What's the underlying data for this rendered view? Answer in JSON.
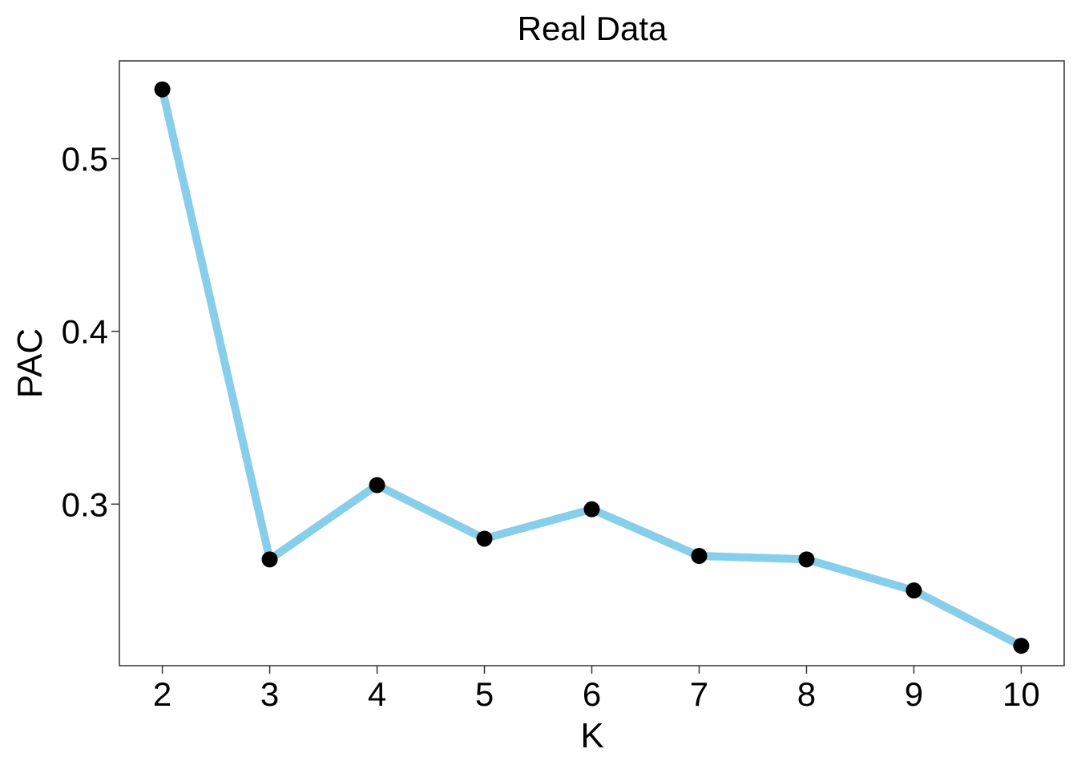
{
  "chart_data": {
    "type": "line",
    "title": "Real Data",
    "xlabel": "K",
    "ylabel": "PAC",
    "x": [
      2,
      3,
      4,
      5,
      6,
      7,
      8,
      9,
      10
    ],
    "series": [
      {
        "values": [
          0.54,
          0.268,
          0.311,
          0.28,
          0.297,
          0.27,
          0.268,
          0.25,
          0.218
        ]
      }
    ],
    "xticks": [
      "2",
      "3",
      "4",
      "5",
      "6",
      "7",
      "8",
      "9",
      "10"
    ],
    "yticks": [
      0.3,
      0.4,
      0.5
    ],
    "ytick_labels": [
      "0.3",
      "0.4",
      "0.5"
    ],
    "xlim": [
      1.6,
      10.4
    ],
    "ylim": [
      0.2065,
      0.5565
    ],
    "grid": false,
    "line_color": "#87CEEB",
    "point_color": "#000000"
  }
}
